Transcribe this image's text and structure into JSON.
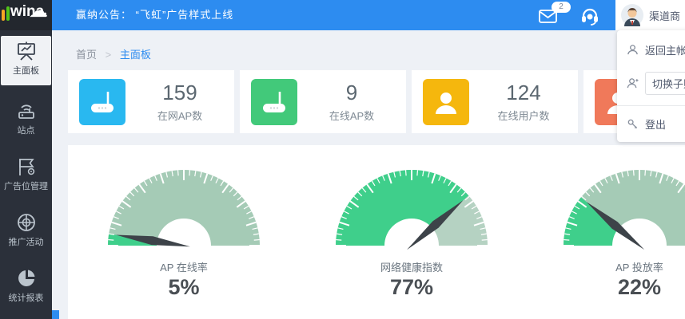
{
  "header": {
    "logo_text": "wina",
    "announcement": "赢纳公告： “飞虹”广告样式上线",
    "mail_badge": "2",
    "username": "渠道商"
  },
  "user_menu": {
    "items": [
      {
        "label": "返回主帐号"
      },
      {
        "label": "切换子账号"
      },
      {
        "label": "登出"
      }
    ]
  },
  "sidebar": {
    "items": [
      {
        "label": "主面板",
        "active": true
      },
      {
        "label": "站点",
        "active": false
      },
      {
        "label": "广告位管理",
        "active": false
      },
      {
        "label": "推广活动",
        "active": false
      },
      {
        "label": "统计报表",
        "active": false
      }
    ]
  },
  "breadcrumb": {
    "home": "首页",
    "separator": ">",
    "current": "主面板"
  },
  "stat_cards": [
    {
      "value": "159",
      "label": "在网AP数",
      "color": "#29b8f0",
      "icon": "router"
    },
    {
      "value": "9",
      "label": "在线AP数",
      "color": "#42c97a",
      "icon": "router"
    },
    {
      "value": "124",
      "label": "在线用户数",
      "color": "#f5b70d",
      "icon": "user"
    },
    {
      "color": "#f0795a",
      "icon": "user"
    }
  ],
  "chart_data": [
    {
      "type": "gauge",
      "title": "AP 在线率",
      "value": 5,
      "unit": "%",
      "min": 0,
      "max": 100,
      "color_filled": "#3fcf8b",
      "color_rest": "#a5cbb6",
      "needle_color": "#3d4349"
    },
    {
      "type": "gauge",
      "title": "网络健康指数",
      "value": 77,
      "unit": "%",
      "min": 0,
      "max": 100,
      "color_filled": "#3fcf8b",
      "color_rest": "#b5d2c2",
      "needle_color": "#3d4349"
    },
    {
      "type": "gauge",
      "title": "AP 投放率",
      "value": 22,
      "unit": "%",
      "min": 0,
      "max": 100,
      "color_filled": "#3fcf8b",
      "color_rest": "#a5cbb6",
      "needle_color": "#3d4349"
    }
  ],
  "colors": {
    "topbar": "#2d8cf0",
    "sidebar_bg": "#2b303a",
    "content_bg": "#eef1f6",
    "breadcrumb_active": "#2d8cf0"
  }
}
